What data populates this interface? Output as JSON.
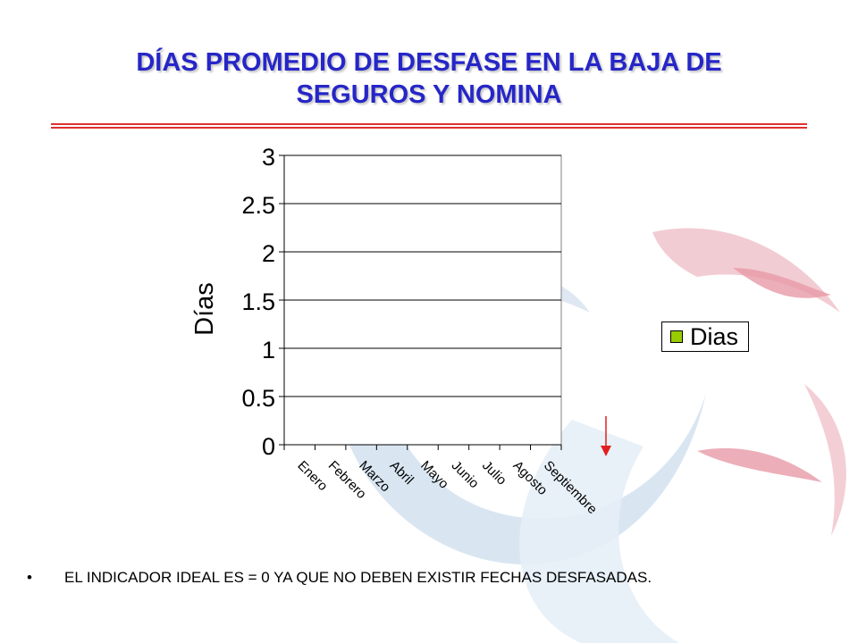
{
  "slide": {
    "title_line1": "DÍAS PROMEDIO DE DESFASE EN LA BAJA DE",
    "title_line2": "SEGUROS Y NOMINA",
    "note": "EL INDICADOR IDEAL ES = 0 YA QUE NO DEBEN EXISTIR FECHAS DESFASADAS.",
    "bullet": "•"
  },
  "colors": {
    "title": "#2626c8",
    "rule_red": "#e03030",
    "series": "#99cc00",
    "arrow": "#e02020"
  },
  "decorations": [
    "red-arrow-icon",
    "background-swoosh-graphic"
  ],
  "chart_data": {
    "type": "bar",
    "title": "",
    "ylabel": "Días",
    "xlabel": "",
    "categories": [
      "Enero",
      "Febrero",
      "Marzo",
      "Abril",
      "Mayo",
      "Junio",
      "Julio",
      "Agosto",
      "Septiembre"
    ],
    "series": [
      {
        "name": "Dias",
        "values": [
          0,
          0,
          0,
          0,
          0,
          0,
          0,
          0,
          0
        ]
      }
    ],
    "ylim": [
      0,
      3
    ],
    "yticks": [
      "0",
      "0.5",
      "1",
      "1.5",
      "2",
      "2.5",
      "3"
    ],
    "grid": true,
    "legend": "right"
  }
}
